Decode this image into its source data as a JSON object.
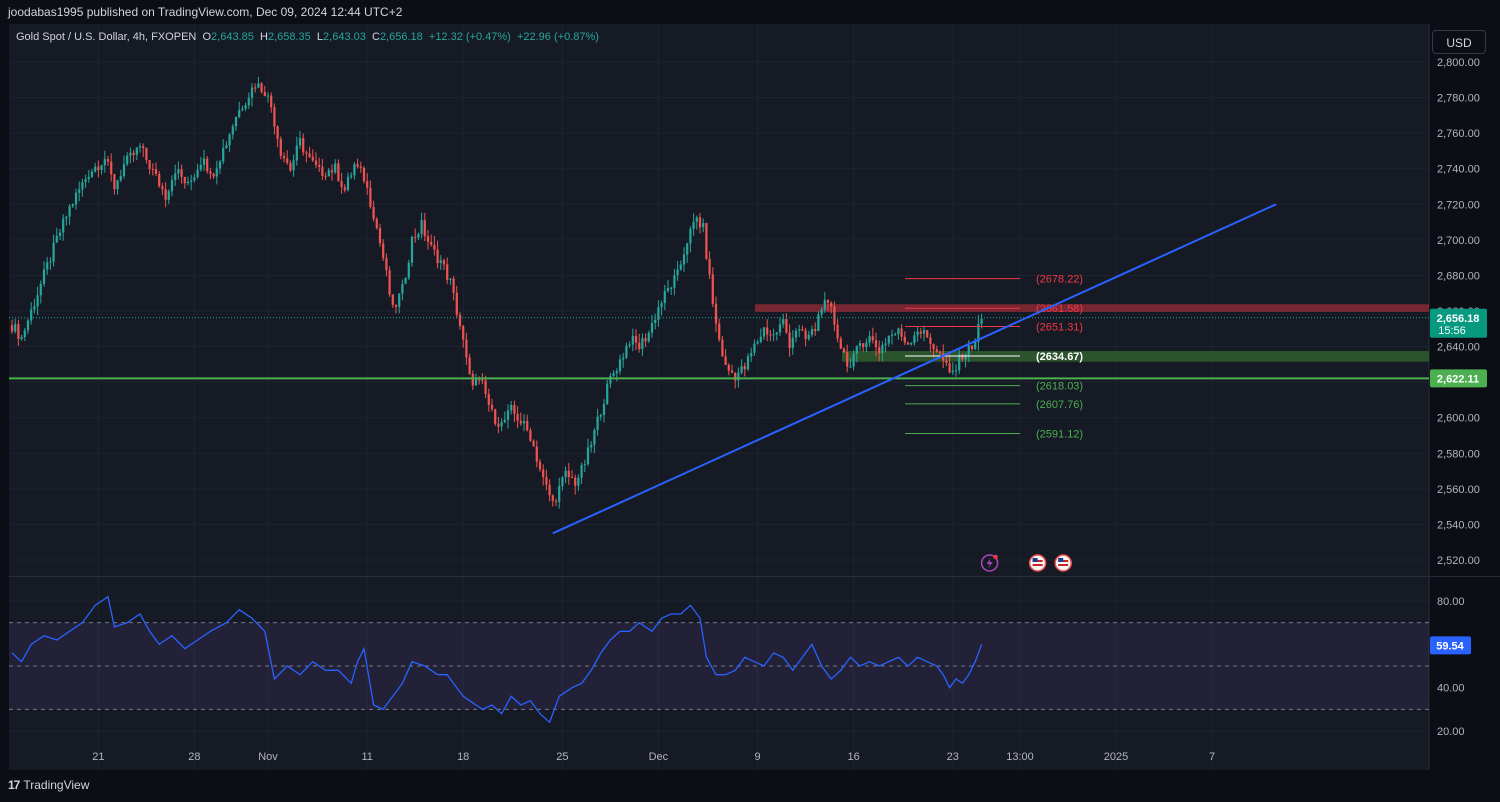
{
  "header": {
    "publisher_line": "joodabas1995 published on TradingView.com, Dec 09, 2024 12:44 UTC+2"
  },
  "legend": {
    "symbol": "Gold Spot / U.S. Dollar, 4h, FXOPEN",
    "o_label": "O",
    "o_value": "2,643.85",
    "h_label": "H",
    "h_value": "2,658.35",
    "l_label": "L",
    "l_value": "2,643.03",
    "c_label": "C",
    "c_value": "2,656.18",
    "change": "+12.32 (+0.47%)",
    "change2": "+22.96 (+0.87%)"
  },
  "currency_button": "USD",
  "footer": {
    "brand": "TradingView",
    "brand_mark": "17"
  },
  "colors": {
    "background": "#161a25",
    "up": "#26a69a",
    "down": "#ef5350",
    "trendline": "#2962ff",
    "support_line": "#4caf50",
    "rsi_line": "#2962ff",
    "rsi_band": "#7e57c2"
  },
  "chart_data": [
    {
      "type": "candlestick",
      "title": "",
      "y_ticks": [
        "2,800.00",
        "2,780.00",
        "2,760.00",
        "2,740.00",
        "2,720.00",
        "2,700.00",
        "2,680.00",
        "2,660.00",
        "2,640.00",
        "2,620.00",
        "2,600.00",
        "2,580.00",
        "2,560.00",
        "2,540.00",
        "2,520.00"
      ],
      "ylim": [
        2512,
        2808
      ],
      "x_ticks": [
        "21",
        "28",
        "Nov",
        "11",
        "18",
        "25",
        "Dec",
        "9",
        "16",
        "23",
        "13:00",
        "2025",
        "7"
      ],
      "price_path": [
        [
          0,
          2652
        ],
        [
          3,
          2645
        ],
        [
          8,
          2670
        ],
        [
          14,
          2700
        ],
        [
          18,
          2718
        ],
        [
          24,
          2738
        ],
        [
          29,
          2746
        ],
        [
          32,
          2730
        ],
        [
          35,
          2742
        ],
        [
          40,
          2752
        ],
        [
          45,
          2735
        ],
        [
          48,
          2725
        ],
        [
          51,
          2740
        ],
        [
          55,
          2730
        ],
        [
          60,
          2748
        ],
        [
          62,
          2735
        ],
        [
          67,
          2755
        ],
        [
          70,
          2770
        ],
        [
          74,
          2782
        ],
        [
          76,
          2788
        ],
        [
          79,
          2784
        ],
        [
          81,
          2775
        ],
        [
          84,
          2750
        ],
        [
          87,
          2740
        ],
        [
          90,
          2755
        ],
        [
          93,
          2745
        ],
        [
          96,
          2738
        ],
        [
          101,
          2740
        ],
        [
          104,
          2728
        ],
        [
          107,
          2742
        ],
        [
          110,
          2735
        ],
        [
          113,
          2715
        ],
        [
          116,
          2690
        ],
        [
          119,
          2660
        ],
        [
          122,
          2672
        ],
        [
          125,
          2700
        ],
        [
          128,
          2708
        ],
        [
          131,
          2695
        ],
        [
          134,
          2688
        ],
        [
          137,
          2676
        ],
        [
          140,
          2652
        ],
        [
          143,
          2622
        ],
        [
          147,
          2618
        ],
        [
          150,
          2602
        ],
        [
          153,
          2596
        ],
        [
          156,
          2604
        ],
        [
          159,
          2598
        ],
        [
          162,
          2590
        ],
        [
          166,
          2565
        ],
        [
          169,
          2552
        ],
        [
          173,
          2568
        ],
        [
          176,
          2564
        ],
        [
          178,
          2570
        ],
        [
          181,
          2585
        ],
        [
          184,
          2605
        ],
        [
          187,
          2622
        ],
        [
          190,
          2632
        ],
        [
          193,
          2644
        ],
        [
          196,
          2640
        ],
        [
          199,
          2648
        ],
        [
          202,
          2662
        ],
        [
          205,
          2672
        ],
        [
          208,
          2680
        ],
        [
          211,
          2700
        ],
        [
          214,
          2712
        ],
        [
          216,
          2706
        ],
        [
          218,
          2678
        ],
        [
          220,
          2652
        ],
        [
          223,
          2628
        ],
        [
          226,
          2624
        ],
        [
          229,
          2628
        ],
        [
          232,
          2640
        ],
        [
          235,
          2650
        ],
        [
          238,
          2646
        ],
        [
          241,
          2654
        ],
        [
          243,
          2642
        ],
        [
          245,
          2650
        ],
        [
          248,
          2644
        ],
        [
          251,
          2650
        ],
        [
          253,
          2664
        ],
        [
          256,
          2660
        ],
        [
          259,
          2640
        ],
        [
          262,
          2628
        ],
        [
          265,
          2642
        ],
        [
          268,
          2645
        ],
        [
          271,
          2638
        ],
        [
          274,
          2646
        ],
        [
          277,
          2648
        ],
        [
          280,
          2642
        ],
        [
          283,
          2650
        ],
        [
          286,
          2645
        ],
        [
          289,
          2638
        ],
        [
          291,
          2632
        ],
        [
          293,
          2624
        ],
        [
          295,
          2628
        ],
        [
          297,
          2636
        ],
        [
          299,
          2638
        ],
        [
          301,
          2644
        ],
        [
          303,
          2656
        ]
      ],
      "last_index": 303,
      "total_slots": 440,
      "x_tick_slots": [
        27,
        57,
        80,
        111,
        141,
        172,
        202,
        233,
        263,
        294,
        315,
        345,
        375
      ],
      "trendline": {
        "from": [
          169,
          2535
        ],
        "to": [
          395,
          2720
        ]
      },
      "support_line": {
        "value": 2622.11,
        "label": "2,622.11"
      },
      "current_price": {
        "value": 2656.18,
        "label": "2,656.18",
        "countdown": "15:56"
      },
      "resistance_zone": [
        2659.5,
        2663.8
      ],
      "support_zone": [
        2631.5,
        2637.5
      ],
      "levels": [
        {
          "value": 2678.22,
          "label": "(2678.22)",
          "color": "#f23645"
        },
        {
          "value": 2661.58,
          "label": "(2661.58)",
          "color": "#f23645"
        },
        {
          "value": 2651.31,
          "label": "(2651.31)",
          "color": "#f23645"
        },
        {
          "value": 2634.67,
          "label": "(2634.67)",
          "color": "#ffffff"
        },
        {
          "value": 2618.03,
          "label": "(2618.03)",
          "color": "#4caf50"
        },
        {
          "value": 2607.76,
          "label": "(2607.76)",
          "color": "#4caf50"
        },
        {
          "value": 2591.12,
          "label": "(2591.12)",
          "color": "#4caf50"
        }
      ],
      "events": [
        {
          "slot": 303,
          "icon": "lightning-icon"
        },
        {
          "slot": 318,
          "icon": "us-flag-icon"
        },
        {
          "slot": 326,
          "icon": "us-flag-icon"
        }
      ]
    },
    {
      "type": "line",
      "title": "",
      "y_ticks": [
        "80.00",
        "40.00",
        "20.00"
      ],
      "ylim": [
        15,
        90
      ],
      "band": [
        30,
        70
      ],
      "midline": 50,
      "current": {
        "value": 59.54,
        "label": "59.54"
      },
      "rsi_path": [
        [
          0,
          56
        ],
        [
          3,
          52
        ],
        [
          6,
          60
        ],
        [
          10,
          64
        ],
        [
          14,
          62
        ],
        [
          18,
          66
        ],
        [
          22,
          70
        ],
        [
          26,
          78
        ],
        [
          30,
          82
        ],
        [
          32,
          68
        ],
        [
          36,
          70
        ],
        [
          40,
          74
        ],
        [
          43,
          66
        ],
        [
          46,
          60
        ],
        [
          50,
          64
        ],
        [
          54,
          58
        ],
        [
          58,
          62
        ],
        [
          62,
          66
        ],
        [
          67,
          70
        ],
        [
          71,
          76
        ],
        [
          75,
          72
        ],
        [
          79,
          66
        ],
        [
          82,
          44
        ],
        [
          86,
          50
        ],
        [
          90,
          46
        ],
        [
          94,
          52
        ],
        [
          98,
          48
        ],
        [
          102,
          48
        ],
        [
          106,
          42
        ],
        [
          108,
          52
        ],
        [
          110,
          58
        ],
        [
          113,
          32
        ],
        [
          116,
          30
        ],
        [
          119,
          36
        ],
        [
          122,
          42
        ],
        [
          125,
          52
        ],
        [
          129,
          50
        ],
        [
          133,
          46
        ],
        [
          136,
          46
        ],
        [
          139,
          40
        ],
        [
          141,
          36
        ],
        [
          143,
          34
        ],
        [
          147,
          30
        ],
        [
          150,
          32
        ],
        [
          153,
          28
        ],
        [
          156,
          36
        ],
        [
          159,
          32
        ],
        [
          162,
          34
        ],
        [
          165,
          28
        ],
        [
          168,
          24
        ],
        [
          171,
          36
        ],
        [
          175,
          40
        ],
        [
          178,
          42
        ],
        [
          181,
          48
        ],
        [
          184,
          56
        ],
        [
          187,
          62
        ],
        [
          190,
          66
        ],
        [
          193,
          66
        ],
        [
          196,
          70
        ],
        [
          200,
          66
        ],
        [
          203,
          72
        ],
        [
          206,
          74
        ],
        [
          209,
          74
        ],
        [
          212,
          78
        ],
        [
          215,
          72
        ],
        [
          217,
          54
        ],
        [
          220,
          46
        ],
        [
          223,
          46
        ],
        [
          226,
          48
        ],
        [
          229,
          54
        ],
        [
          232,
          52
        ],
        [
          235,
          50
        ],
        [
          238,
          56
        ],
        [
          241,
          54
        ],
        [
          244,
          48
        ],
        [
          247,
          54
        ],
        [
          250,
          60
        ],
        [
          253,
          50
        ],
        [
          256,
          44
        ],
        [
          259,
          48
        ],
        [
          262,
          54
        ],
        [
          265,
          50
        ],
        [
          268,
          52
        ],
        [
          271,
          50
        ],
        [
          274,
          52
        ],
        [
          277,
          54
        ],
        [
          280,
          50
        ],
        [
          283,
          54
        ],
        [
          286,
          52
        ],
        [
          289,
          50
        ],
        [
          291,
          46
        ],
        [
          293,
          40
        ],
        [
          295,
          44
        ],
        [
          297,
          42
        ],
        [
          299,
          46
        ],
        [
          301,
          52
        ],
        [
          303,
          60
        ]
      ]
    }
  ]
}
